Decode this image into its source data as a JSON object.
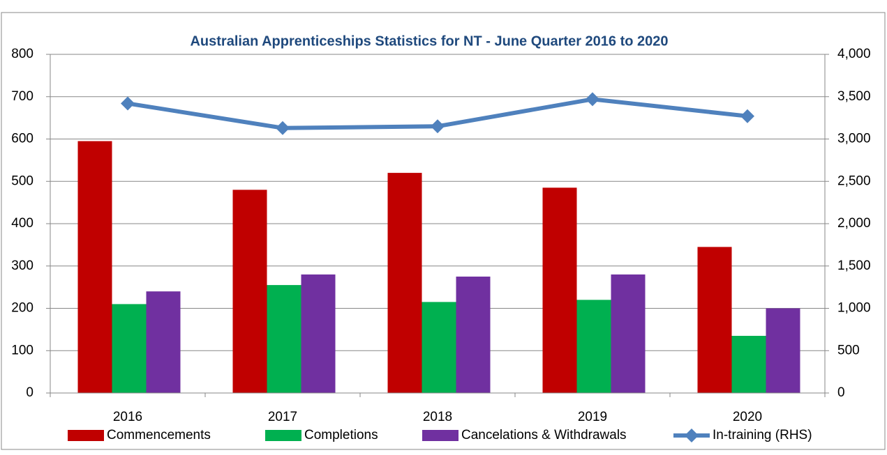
{
  "chart_data": {
    "type": "bar",
    "title": "Australian Apprenticeships Statistics for NT - June Quarter  2016 to 2020",
    "categories": [
      "2016",
      "2017",
      "2018",
      "2019",
      "2020"
    ],
    "series": [
      {
        "name": "Commencements",
        "color": "#c00000",
        "values": [
          595,
          480,
          520,
          485,
          345
        ]
      },
      {
        "name": "Completions",
        "color": "#00b050",
        "values": [
          210,
          255,
          215,
          220,
          135
        ]
      },
      {
        "name": "Cancelations & Withdrawals",
        "color": "#7030a0",
        "values": [
          240,
          280,
          275,
          280,
          200
        ]
      },
      {
        "name": "In-training (RHS)",
        "color": "#4f81bd",
        "type": "line",
        "axis": "y2",
        "values": [
          3420,
          3130,
          3150,
          3470,
          3270
        ]
      }
    ],
    "ylim": [
      0,
      800
    ],
    "yticks": [
      0,
      100,
      200,
      300,
      400,
      500,
      600,
      700,
      800
    ],
    "y2lim": [
      0,
      4000
    ],
    "y2ticks": [
      0,
      500,
      {
        "value": 1000,
        "label": "1,000"
      },
      {
        "value": 1500,
        "label": "1,500"
      },
      {
        "value": 2000,
        "label": "2,000"
      },
      {
        "value": 2500,
        "label": "2,500"
      },
      {
        "value": 3000,
        "label": "3,000"
      },
      {
        "value": 3500,
        "label": "3,500"
      },
      {
        "value": 4000,
        "label": "4,000"
      }
    ],
    "grid": true,
    "legend": "bottom"
  }
}
